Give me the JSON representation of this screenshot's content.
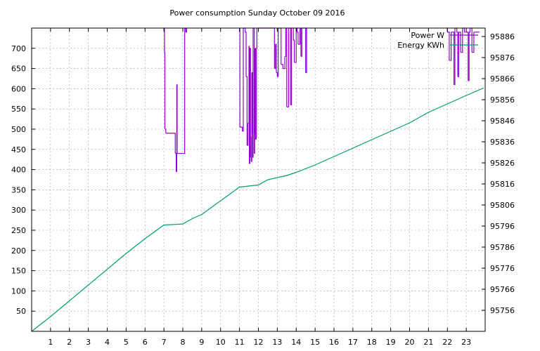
{
  "chart_data": {
    "type": "line",
    "title": "Power consumption Sunday October 09 2016",
    "xlabel": "",
    "ylabel": "",
    "y2label": "",
    "xlim": [
      0,
      24
    ],
    "ylim": [
      0,
      750
    ],
    "y2lim": [
      95746,
      95890
    ],
    "grid": true,
    "legend_position": "top-right",
    "x_ticks": [
      1,
      2,
      3,
      4,
      5,
      6,
      7,
      8,
      9,
      10,
      11,
      12,
      13,
      14,
      15,
      16,
      17,
      18,
      19,
      20,
      21,
      22,
      23
    ],
    "y_ticks": [
      50,
      100,
      150,
      200,
      250,
      300,
      350,
      400,
      450,
      500,
      550,
      600,
      650,
      700
    ],
    "y2_ticks": [
      95756,
      95766,
      95776,
      95786,
      95796,
      95806,
      95816,
      95826,
      95836,
      95846,
      95856,
      95866,
      95876,
      95886
    ],
    "series": [
      {
        "name": "Power W",
        "axis": "y",
        "style": "steps",
        "color": "#9400d3",
        "x": [
          6.98,
          7.03,
          7.05,
          7.1,
          7.15,
          7.6,
          7.65,
          7.68,
          7.7,
          7.72,
          7.75,
          7.8,
          7.85,
          8.1,
          8.15,
          8.2,
          11.0,
          11.02,
          11.05,
          11.15,
          11.2,
          11.3,
          11.35,
          11.4,
          11.45,
          11.5,
          11.52,
          11.55,
          11.58,
          11.6,
          11.62,
          11.65,
          11.68,
          11.7,
          11.72,
          11.75,
          11.78,
          11.8,
          11.82,
          11.85,
          11.88,
          11.9,
          11.92,
          11.95,
          11.98,
          12.0,
          12.8,
          12.85,
          12.9,
          12.95,
          13.0,
          13.05,
          13.1,
          13.2,
          13.3,
          13.4,
          13.45,
          13.5,
          13.6,
          13.7,
          13.75,
          13.8,
          13.85,
          13.9,
          14.0,
          14.05,
          14.1,
          14.2,
          14.25,
          14.3,
          14.4,
          14.5,
          14.55,
          14.6,
          21.95,
          22.0,
          22.1,
          22.2,
          22.3,
          22.35,
          22.4,
          22.5,
          22.55,
          22.6,
          22.7,
          22.8,
          22.9,
          23.0,
          23.1,
          23.15,
          23.2,
          23.3,
          23.4,
          23.5,
          23.6,
          23.7
        ],
        "y": [
          760,
          690,
          500,
          490,
          490,
          440,
          395,
          610,
          440,
          440,
          440,
          440,
          440,
          760,
          740,
          760,
          760,
          505,
          505,
          495,
          760,
          740,
          630,
          460,
          515,
          705,
          415,
          700,
          480,
          430,
          420,
          640,
          490,
          430,
          760,
          760,
          440,
          490,
          700,
          475,
          480,
          700,
          760,
          760,
          760,
          760,
          760,
          650,
          710,
          640,
          630,
          760,
          760,
          660,
          650,
          680,
          760,
          555,
          760,
          560,
          760,
          760,
          720,
          665,
          760,
          740,
          710,
          760,
          680,
          760,
          760,
          640,
          760,
          760,
          760,
          740,
          670,
          740,
          740,
          610,
          760,
          740,
          630,
          740,
          690,
          760,
          740,
          740,
          620,
          740,
          760,
          690,
          740,
          740,
          740,
          740
        ]
      },
      {
        "name": "Energy KWh",
        "axis": "y2",
        "style": "line",
        "color": "#009e73",
        "x": [
          0,
          1,
          2,
          3,
          4,
          5,
          6,
          7,
          7.5,
          8,
          8.2,
          8.5,
          9,
          10,
          11,
          11.5,
          12,
          12.5,
          13.5,
          14,
          15,
          16,
          17,
          18,
          19,
          20,
          21,
          22,
          23,
          23.9
        ],
        "y": [
          95746,
          95753,
          95760.5,
          95768,
          95775.5,
          95783,
          95790,
          95796.5,
          95796.7,
          95797,
          95798,
          95799.5,
          95801.5,
          95808,
          95814.5,
          95815,
          95815.5,
          95818,
          95820,
          95821.5,
          95825,
          95829,
          95833,
          95837,
          95841,
          95845,
          95850,
          95854,
          95858,
          95861.5
        ]
      }
    ]
  }
}
